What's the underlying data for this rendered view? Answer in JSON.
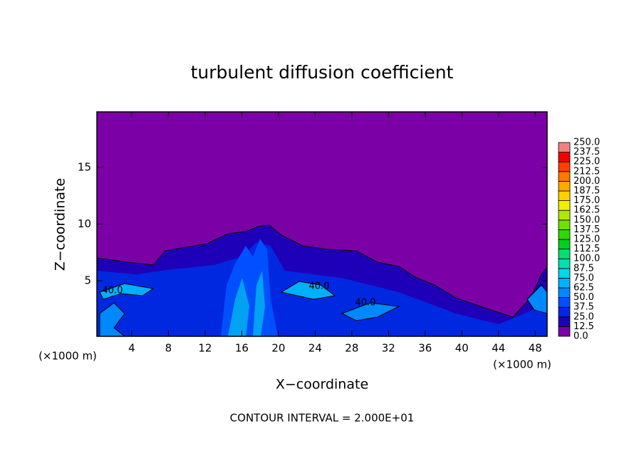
{
  "chart_data": {
    "type": "contour",
    "title": "turbulent diffusion coefficient",
    "x_label": "X−coordinate",
    "y_label": "Z−coordinate",
    "x_unit": "(×1000 m)",
    "y_unit": "(×1000 m)",
    "annotation": "CONTOUR INTERVAL = 2.000E+01",
    "contour_labels": [
      "40.0",
      "40.0",
      "40.0"
    ],
    "xlim": [
      0.2,
      49.3
    ],
    "xticks": [
      4,
      8,
      12,
      16,
      20,
      24,
      28,
      32,
      36,
      40,
      44,
      48
    ],
    "ylim": [
      0.1,
      19.9
    ],
    "yticks": [
      5,
      10,
      15
    ],
    "colorbar": {
      "levels": [
        {
          "value": 0,
          "label": "0.0"
        },
        12.5,
        {
          "value": 25,
          "label": "25.0"
        },
        37.5,
        {
          "value": 50,
          "label": "50.0"
        },
        62.5,
        {
          "value": 75,
          "label": "75.0"
        },
        87.5,
        {
          "value": 100,
          "label": "100.0"
        },
        112.5,
        {
          "value": 125,
          "label": "125.0"
        },
        137.5,
        {
          "value": 150,
          "label": "150.0"
        },
        162.5,
        {
          "value": 175,
          "label": "175.0"
        },
        187.5,
        {
          "value": 200,
          "label": "200.0"
        },
        212.5,
        {
          "value": 225,
          "label": "225.0"
        },
        237.5,
        {
          "value": 250,
          "label": "250.0"
        }
      ],
      "colors": [
        "#7b00a5",
        "#1e00b8",
        "#0028e0",
        "#0050ff",
        "#0088ff",
        "#00b0ff",
        "#00d8e8",
        "#00e0b0",
        "#00e070",
        "#00d020",
        "#30d800",
        "#70e000",
        "#b0e800",
        "#f0f000",
        "#ffd000",
        "#ffaa00",
        "#ff7800",
        "#ff4000",
        "#f00000",
        "#f08080"
      ]
    }
  }
}
